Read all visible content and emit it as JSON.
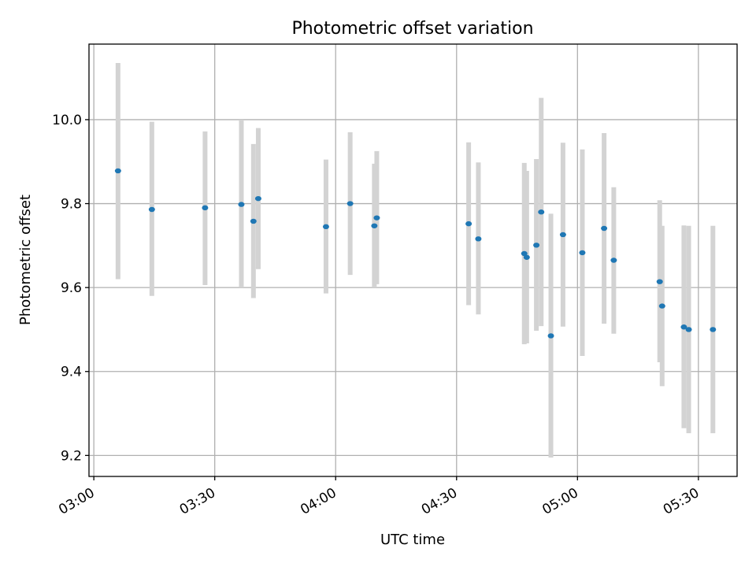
{
  "chart_data": {
    "type": "scatter",
    "title": "Photometric offset variation",
    "xlabel": "UTC time",
    "ylabel": "Photometric offset",
    "x_ticks": [
      "03:00",
      "03:30",
      "04:00",
      "04:30",
      "05:00",
      "05:30"
    ],
    "y_ticks": [
      "9.2",
      "9.4",
      "9.6",
      "9.8",
      "10.0"
    ],
    "xlim": [
      "02:58.8",
      "05:39.6"
    ],
    "ylim": [
      9.15,
      10.18
    ],
    "grid": true,
    "colors": {
      "point": "#1f77b4",
      "errorbar": "#d3d3d3",
      "grid": "#b0b0b0"
    },
    "points": [
      {
        "x": "03:06.0",
        "y": 9.878,
        "lo": 9.62,
        "hi": 10.135
      },
      {
        "x": "03:14.4",
        "y": 9.786,
        "lo": 9.58,
        "hi": 9.995
      },
      {
        "x": "03:27.6",
        "y": 9.79,
        "lo": 9.606,
        "hi": 9.972
      },
      {
        "x": "03:36.6",
        "y": 9.798,
        "lo": 9.6,
        "hi": 10.0
      },
      {
        "x": "03:39.6",
        "y": 9.758,
        "lo": 9.575,
        "hi": 9.942
      },
      {
        "x": "03:40.8",
        "y": 9.812,
        "lo": 9.644,
        "hi": 9.98
      },
      {
        "x": "03:57.6",
        "y": 9.745,
        "lo": 9.586,
        "hi": 9.905
      },
      {
        "x": "04:03.6",
        "y": 9.8,
        "lo": 9.63,
        "hi": 9.97
      },
      {
        "x": "04:09.6",
        "y": 9.747,
        "lo": 9.6,
        "hi": 9.895
      },
      {
        "x": "04:10.2",
        "y": 9.766,
        "lo": 9.608,
        "hi": 9.925
      },
      {
        "x": "04:33.0",
        "y": 9.752,
        "lo": 9.558,
        "hi": 9.946
      },
      {
        "x": "04:35.4",
        "y": 9.716,
        "lo": 9.536,
        "hi": 9.898
      },
      {
        "x": "04:46.8",
        "y": 9.681,
        "lo": 9.465,
        "hi": 9.897
      },
      {
        "x": "04:47.4",
        "y": 9.672,
        "lo": 9.467,
        "hi": 9.878
      },
      {
        "x": "04:49.8",
        "y": 9.701,
        "lo": 9.497,
        "hi": 9.906
      },
      {
        "x": "04:51.0",
        "y": 9.78,
        "lo": 9.508,
        "hi": 10.052
      },
      {
        "x": "04:53.4",
        "y": 9.485,
        "lo": 9.195,
        "hi": 9.776
      },
      {
        "x": "04:56.4",
        "y": 9.726,
        "lo": 9.507,
        "hi": 9.945
      },
      {
        "x": "05:01.2",
        "y": 9.683,
        "lo": 9.437,
        "hi": 9.929
      },
      {
        "x": "05:06.6",
        "y": 9.741,
        "lo": 9.514,
        "hi": 9.968
      },
      {
        "x": "05:09.0",
        "y": 9.665,
        "lo": 9.49,
        "hi": 9.839
      },
      {
        "x": "05:20.4",
        "y": 9.614,
        "lo": 9.422,
        "hi": 9.808
      },
      {
        "x": "05:21.0",
        "y": 9.556,
        "lo": 9.365,
        "hi": 9.747
      },
      {
        "x": "05:26.4",
        "y": 9.506,
        "lo": 9.265,
        "hi": 9.748
      },
      {
        "x": "05:27.6",
        "y": 9.5,
        "lo": 9.253,
        "hi": 9.747
      },
      {
        "x": "05:33.6",
        "y": 9.5,
        "lo": 9.253,
        "hi": 9.747
      }
    ]
  }
}
